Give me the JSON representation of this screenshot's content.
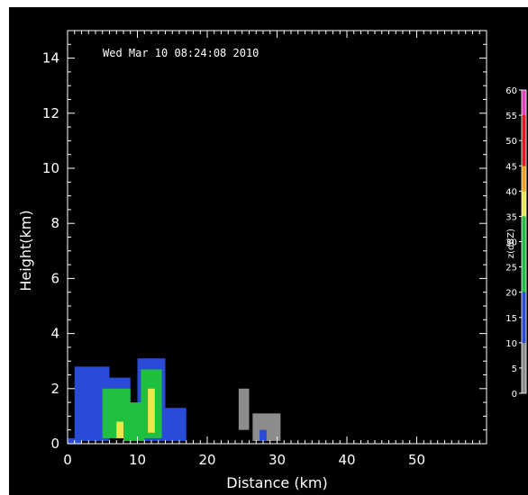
{
  "chart_data": {
    "type": "heatmap",
    "title": "Wed Mar 10 08:24:08 2010",
    "xlabel": "Distance (km)",
    "ylabel": "Height(km)",
    "xlim": [
      0,
      60
    ],
    "ylim": [
      0,
      15
    ],
    "x_ticks": [
      0,
      10,
      20,
      30,
      40,
      50
    ],
    "y_ticks": [
      0,
      2,
      4,
      6,
      8,
      10,
      12,
      14
    ],
    "colorbar": {
      "label": "z(dBZ)",
      "ticks": [
        0,
        5,
        10,
        15,
        20,
        25,
        30,
        35,
        40,
        45,
        50,
        55,
        60
      ],
      "range": [
        0,
        60
      ],
      "stops": [
        {
          "from": 0,
          "to": 10,
          "color": "#8c8c8c"
        },
        {
          "from": 10,
          "to": 20,
          "color": "#2a4bd7"
        },
        {
          "from": 20,
          "to": 35,
          "color": "#1fbf3f"
        },
        {
          "from": 35,
          "to": 40,
          "color": "#e8e84a"
        },
        {
          "from": 40,
          "to": 45,
          "color": "#f0a020"
        },
        {
          "from": 45,
          "to": 55,
          "color": "#d42020"
        },
        {
          "from": 55,
          "to": 60,
          "color": "#e040c0"
        }
      ]
    },
    "echoes": [
      {
        "x": [
          1,
          6
        ],
        "y": [
          0.1,
          2.8
        ],
        "dbz": 12
      },
      {
        "x": [
          4,
          9
        ],
        "y": [
          0.2,
          2.4
        ],
        "dbz": 15
      },
      {
        "x": [
          5,
          9
        ],
        "y": [
          0.2,
          2.0
        ],
        "dbz": 25
      },
      {
        "x": [
          6,
          8
        ],
        "y": [
          0.3,
          1.4
        ],
        "dbz": 30
      },
      {
        "x": [
          7,
          8
        ],
        "y": [
          0.2,
          0.8
        ],
        "dbz": 38
      },
      {
        "x": [
          10,
          14
        ],
        "y": [
          0.1,
          3.1
        ],
        "dbz": 15
      },
      {
        "x": [
          10.5,
          13.5
        ],
        "y": [
          0.2,
          2.7
        ],
        "dbz": 25
      },
      {
        "x": [
          11.2,
          13
        ],
        "y": [
          0.3,
          2.4
        ],
        "dbz": 30
      },
      {
        "x": [
          11.5,
          12.5
        ],
        "y": [
          0.4,
          2.0
        ],
        "dbz": 38
      },
      {
        "x": [
          8,
          11
        ],
        "y": [
          0.1,
          1.5
        ],
        "dbz": 25
      },
      {
        "x": [
          14,
          17
        ],
        "y": [
          0.1,
          1.3
        ],
        "dbz": 12
      },
      {
        "x": [
          0,
          2
        ],
        "y": [
          0,
          0.2
        ],
        "dbz": 12
      },
      {
        "x": [
          24.5,
          26
        ],
        "y": [
          0.5,
          2.0
        ],
        "dbz": 5
      },
      {
        "x": [
          26.5,
          30.5
        ],
        "y": [
          0.1,
          1.1
        ],
        "dbz": 5
      },
      {
        "x": [
          27.5,
          28.5
        ],
        "y": [
          0.1,
          0.5
        ],
        "dbz": 14
      }
    ]
  }
}
